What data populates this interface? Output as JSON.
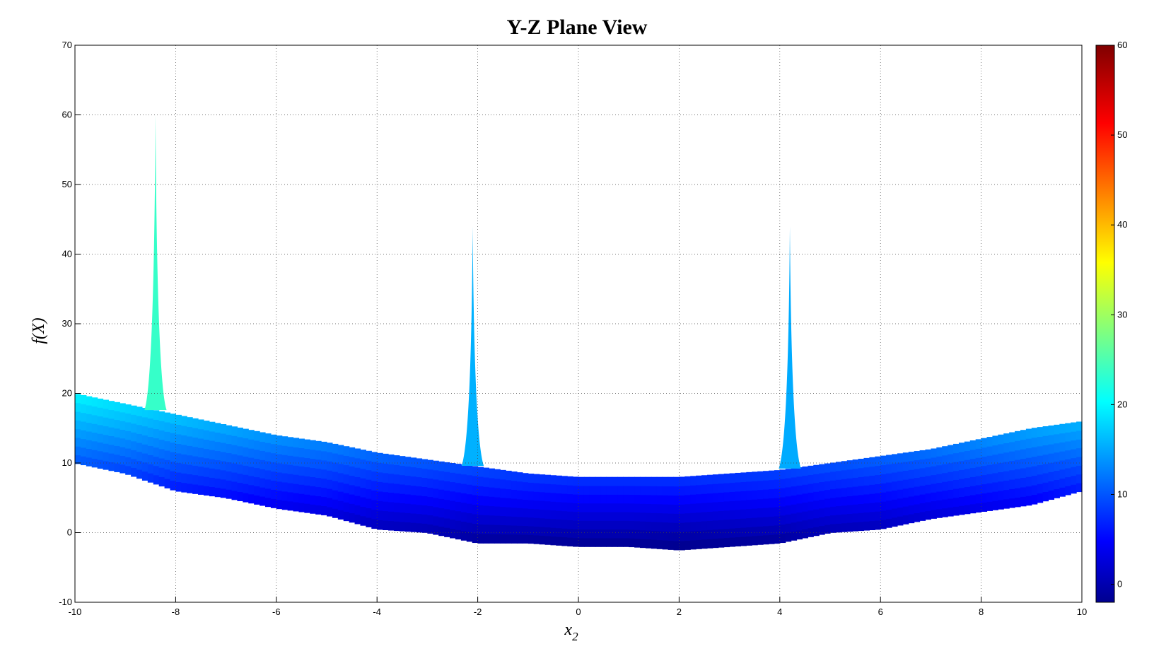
{
  "chart_data": {
    "type": "area",
    "title": "Y-Z Plane View",
    "xlabel": "x",
    "xlabel_subscript": "2",
    "ylabel": "f(X)",
    "xlim": [
      -10,
      10
    ],
    "ylim": [
      -10,
      70
    ],
    "xticks": [
      -10,
      -8,
      -6,
      -4,
      -2,
      0,
      2,
      4,
      6,
      8,
      10
    ],
    "yticks": [
      -10,
      0,
      10,
      20,
      30,
      40,
      50,
      60,
      70
    ],
    "grid": true,
    "colormap": "jet",
    "colorbar": {
      "range": [
        -2,
        60
      ],
      "ticks": [
        0,
        10,
        20,
        30,
        40,
        50,
        60
      ],
      "placement": "right"
    },
    "series": [
      {
        "role": "lower envelope",
        "x": [
          -10,
          -9,
          -8,
          -7,
          -6,
          -5,
          -4,
          -3,
          -2,
          -1,
          0,
          1,
          2,
          3,
          4,
          5,
          6,
          7,
          8,
          9,
          10
        ],
        "y": [
          10,
          8.5,
          6,
          5,
          3.5,
          2.5,
          0.5,
          0,
          -1.5,
          -1.5,
          -2,
          -2,
          -2.5,
          -2,
          -1.5,
          0,
          0.5,
          2,
          3,
          4,
          6
        ]
      },
      {
        "role": "upper envelope",
        "x": [
          -10,
          -9,
          -8,
          -7,
          -6,
          -5,
          -4,
          -3,
          -2,
          -1,
          0,
          1,
          2,
          3,
          4,
          5,
          6,
          7,
          8,
          9,
          10
        ],
        "y": [
          20,
          18.5,
          17,
          15.5,
          14,
          13,
          11.5,
          10.5,
          9.5,
          8.5,
          8,
          8,
          8,
          8.5,
          9,
          10,
          11,
          12,
          13.5,
          15,
          16
        ]
      },
      {
        "role": "peaks",
        "x": [
          -8.4,
          -2.1,
          4.2
        ],
        "y": [
          60,
          44,
          44
        ]
      }
    ]
  },
  "colors": {
    "jet": [
      "#00008f",
      "#0000ff",
      "#00ffff",
      "#ffff00",
      "#ff0000",
      "#800000"
    ],
    "grid": "#444444",
    "axis": "#000000"
  }
}
